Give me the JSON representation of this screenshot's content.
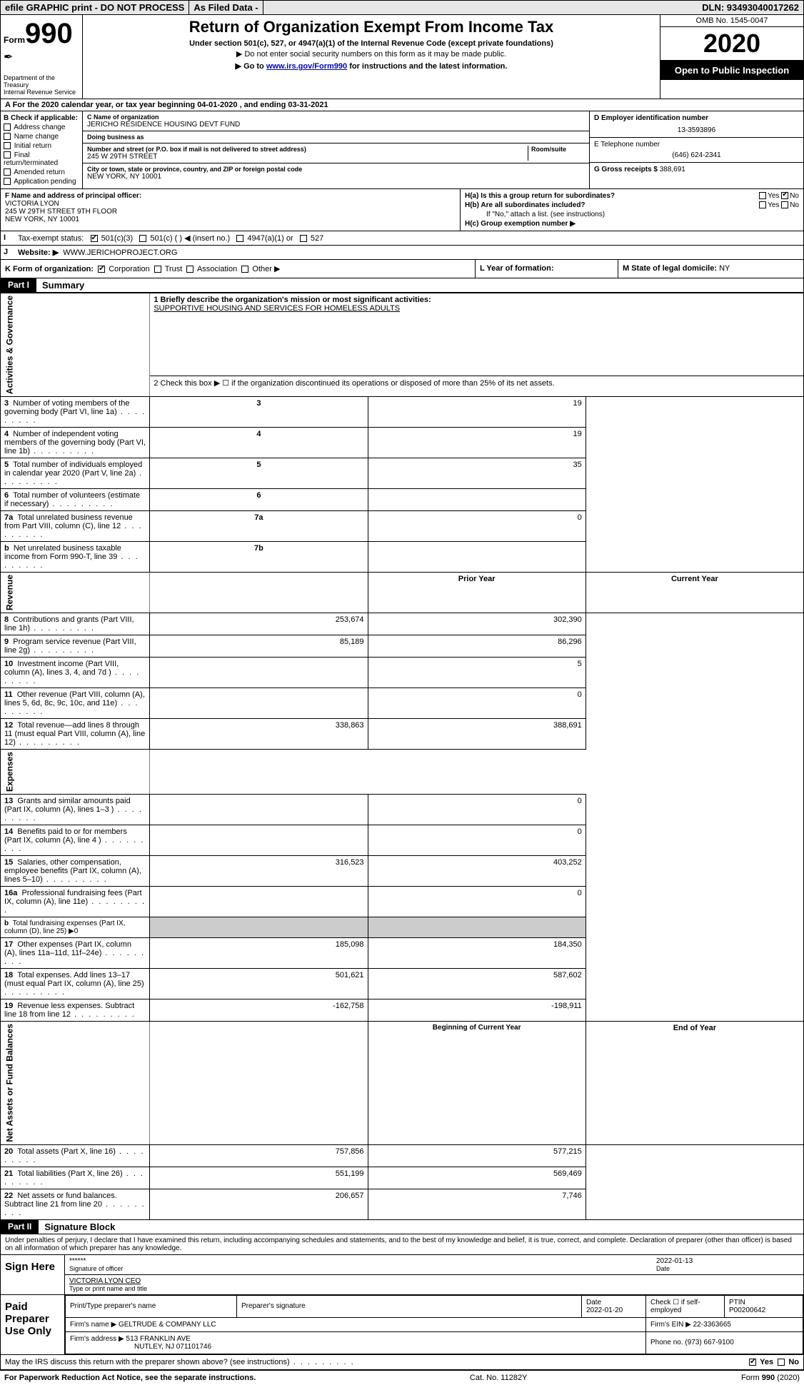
{
  "header_bar": {
    "efile": "efile GRAPHIC print - DO NOT PROCESS",
    "asfiled": "As Filed Data -",
    "dln": "DLN: 93493040017262"
  },
  "top": {
    "form_label": "Form",
    "form_no": "990",
    "dept1": "Department of the Treasury",
    "dept2": "Internal Revenue Service",
    "title": "Return of Organization Exempt From Income Tax",
    "sub1": "Under section 501(c), 527, or 4947(a)(1) of the Internal Revenue Code (except private foundations)",
    "sub2": "▶ Do not enter social security numbers on this form as it may be made public.",
    "sub3_pre": "▶ Go to ",
    "sub3_link": "www.irs.gov/Form990",
    "sub3_post": " for instructions and the latest information.",
    "omb": "OMB No. 1545-0047",
    "year": "2020",
    "blackbox": "Open to Public Inspection"
  },
  "row_a": "A  For the 2020 calendar year, or tax year beginning 04-01-2020  , and ending 03-31-2021",
  "section_b": {
    "hdr": "B Check if applicable:",
    "opts": [
      "Address change",
      "Name change",
      "Initial return",
      "Final return/terminated",
      "Amended return",
      "Application pending"
    ]
  },
  "section_c": {
    "name_lbl": "C Name of organization",
    "name": "JERICHO RESIDENCE HOUSING DEVT FUND",
    "dba_lbl": "Doing business as",
    "dba": "",
    "addr_lbl": "Number and street (or P.O. box if mail is not delivered to street address)",
    "room_lbl": "Room/suite",
    "addr": "245 W 29TH STREET",
    "city_lbl": "City or town, state or province, country, and ZIP or foreign postal code",
    "city": "NEW YORK, NY  10001"
  },
  "section_d": {
    "lbl": "D Employer identification number",
    "val": "13-3593896"
  },
  "section_e": {
    "lbl": "E Telephone number",
    "val": "(646) 624-2341"
  },
  "section_g": {
    "lbl": "G Gross receipts $",
    "val": "388,691"
  },
  "section_f": {
    "lbl": "F  Name and address of principal officer:",
    "name": "VICTORIA LYON",
    "addr1": "245 W 29TH STREET 9TH FLOOR",
    "addr2": "NEW YORK, NY  10001"
  },
  "section_h": {
    "a": "H(a)  Is this a group return for subordinates?",
    "b": "H(b)  Are all subordinates included?",
    "note": "If \"No,\" attach a list. (see instructions)",
    "c": "H(c)  Group exemption number ▶"
  },
  "row_i": {
    "lbl": "Tax-exempt status:",
    "opts": [
      "501(c)(3)",
      "501(c) (  ) ◀ (insert no.)",
      "4947(a)(1) or",
      "527"
    ]
  },
  "row_j": {
    "lbl": "Website: ▶",
    "val": "WWW.JERICHOPROJECT.ORG"
  },
  "row_k": {
    "lbl": "K Form of organization:",
    "opts": [
      "Corporation",
      "Trust",
      "Association",
      "Other ▶"
    ],
    "l_lbl": "L Year of formation:",
    "m_lbl": "M State of legal domicile:",
    "m_val": "NY"
  },
  "part1": {
    "tab": "Part I",
    "title": "Summary"
  },
  "summary": {
    "line1_lbl": "1 Briefly describe the organization's mission or most significant activities:",
    "line1_val": "SUPPORTIVE HOUSING AND SERVICES FOR HOMELESS ADULTS",
    "line2": "2   Check this box ▶ ☐ if the organization discontinued its operations or disposed of more than 25% of its net assets.",
    "sides": [
      "Activities & Governance",
      "Revenue",
      "Expenses",
      "Net Assets or Fund Balances"
    ],
    "rows_ag": [
      {
        "n": "3",
        "t": "Number of voting members of the governing body (Part VI, line 1a)",
        "idx": "3",
        "v": "19"
      },
      {
        "n": "4",
        "t": "Number of independent voting members of the governing body (Part VI, line 1b)",
        "idx": "4",
        "v": "19"
      },
      {
        "n": "5",
        "t": "Total number of individuals employed in calendar year 2020 (Part V, line 2a)",
        "idx": "5",
        "v": "35"
      },
      {
        "n": "6",
        "t": "Total number of volunteers (estimate if necessary)",
        "idx": "6",
        "v": ""
      },
      {
        "n": "7a",
        "t": "Total unrelated business revenue from Part VIII, column (C), line 12",
        "idx": "7a",
        "v": "0"
      },
      {
        "n": "b",
        "t": "Net unrelated business taxable income from Form 990-T, line 39",
        "idx": "7b",
        "v": ""
      }
    ],
    "col_hdr_prior": "Prior Year",
    "col_hdr_curr": "Current Year",
    "rows_rev": [
      {
        "n": "8",
        "t": "Contributions and grants (Part VIII, line 1h)",
        "p": "253,674",
        "c": "302,390"
      },
      {
        "n": "9",
        "t": "Program service revenue (Part VIII, line 2g)",
        "p": "85,189",
        "c": "86,296"
      },
      {
        "n": "10",
        "t": "Investment income (Part VIII, column (A), lines 3, 4, and 7d )",
        "p": "",
        "c": "5"
      },
      {
        "n": "11",
        "t": "Other revenue (Part VIII, column (A), lines 5, 6d, 8c, 9c, 10c, and 11e)",
        "p": "",
        "c": "0"
      },
      {
        "n": "12",
        "t": "Total revenue—add lines 8 through 11 (must equal Part VIII, column (A), line 12)",
        "p": "338,863",
        "c": "388,691"
      }
    ],
    "rows_exp": [
      {
        "n": "13",
        "t": "Grants and similar amounts paid (Part IX, column (A), lines 1–3 )",
        "p": "",
        "c": "0"
      },
      {
        "n": "14",
        "t": "Benefits paid to or for members (Part IX, column (A), line 4 )",
        "p": "",
        "c": "0"
      },
      {
        "n": "15",
        "t": "Salaries, other compensation, employee benefits (Part IX, column (A), lines 5–10)",
        "p": "316,523",
        "c": "403,252"
      },
      {
        "n": "16a",
        "t": "Professional fundraising fees (Part IX, column (A), line 11e)",
        "p": "",
        "c": "0"
      },
      {
        "n": "b",
        "t": "Total fundraising expenses (Part IX, column (D), line 25) ▶0",
        "p": "—",
        "c": "—"
      },
      {
        "n": "17",
        "t": "Other expenses (Part IX, column (A), lines 11a–11d, 11f–24e)",
        "p": "185,098",
        "c": "184,350"
      },
      {
        "n": "18",
        "t": "Total expenses. Add lines 13–17 (must equal Part IX, column (A), line 25)",
        "p": "501,621",
        "c": "587,602"
      },
      {
        "n": "19",
        "t": "Revenue less expenses. Subtract line 18 from line 12",
        "p": "-162,758",
        "c": "-198,911"
      }
    ],
    "col_hdr_beg": "Beginning of Current Year",
    "col_hdr_end": "End of Year",
    "rows_net": [
      {
        "n": "20",
        "t": "Total assets (Part X, line 16)",
        "p": "757,856",
        "c": "577,215"
      },
      {
        "n": "21",
        "t": "Total liabilities (Part X, line 26)",
        "p": "551,199",
        "c": "569,469"
      },
      {
        "n": "22",
        "t": "Net assets or fund balances. Subtract line 21 from line 20",
        "p": "206,657",
        "c": "7,746"
      }
    ]
  },
  "part2": {
    "tab": "Part II",
    "title": "Signature Block"
  },
  "sig": {
    "decl": "Under penalties of perjury, I declare that I have examined this return, including accompanying schedules and statements, and to the best of my knowledge and belief, it is true, correct, and complete. Declaration of preparer (other than officer) is based on all information of which preparer has any knowledge.",
    "sign_here": "Sign Here",
    "stars": "******",
    "sig_of_officer": "Signature of officer",
    "date": "2022-01-13",
    "date_lbl": "Date",
    "name_title": "VICTORIA LYON  CEO",
    "name_title_lbl": "Type or print name and title",
    "paid": "Paid Preparer Use Only",
    "prep_name_lbl": "Print/Type preparer's name",
    "prep_sig_lbl": "Preparer's signature",
    "prep_date_lbl": "Date",
    "prep_date": "2022-01-20",
    "check_lbl": "Check ☐ if self-employed",
    "ptin_lbl": "PTIN",
    "ptin": "P00200642",
    "firm_name_lbl": "Firm's name   ▶",
    "firm_name": "GELTRUDE & COMPANY LLC",
    "firm_ein_lbl": "Firm's EIN ▶",
    "firm_ein": "22-3363665",
    "firm_addr_lbl": "Firm's address ▶",
    "firm_addr1": "513 FRANKLIN AVE",
    "firm_addr2": "NUTLEY, NJ  071101746",
    "phone_lbl": "Phone no.",
    "phone": "(973) 667-9100",
    "discuss": "May the IRS discuss this return with the preparer shown above? (see instructions)"
  },
  "footer": {
    "l": "For Paperwork Reduction Act Notice, see the separate instructions.",
    "m": "Cat. No. 11282Y",
    "r": "Form 990 (2020)"
  }
}
